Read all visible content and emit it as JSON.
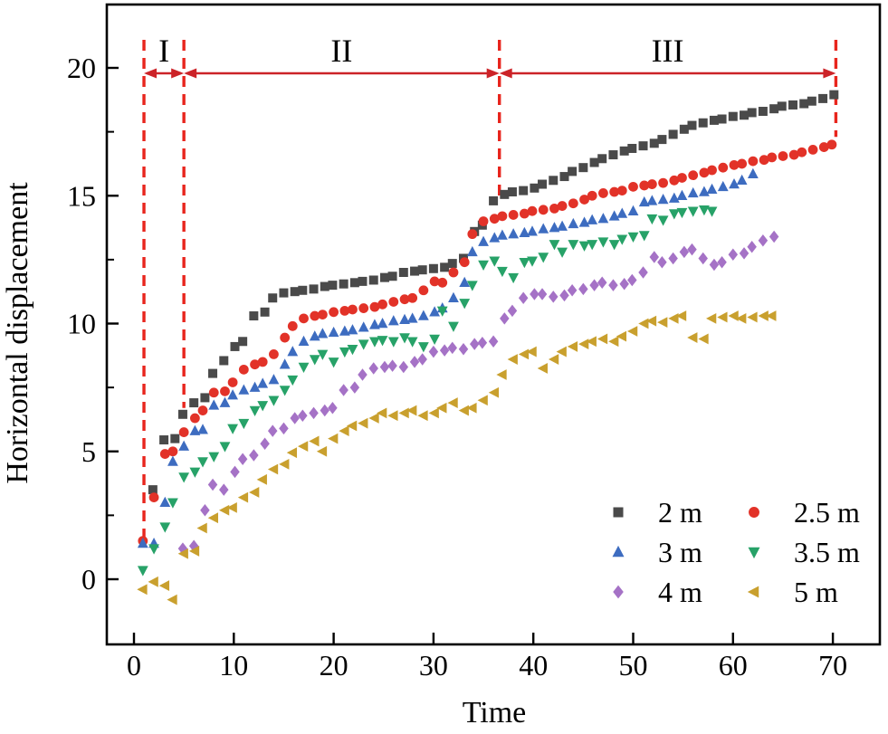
{
  "chart_data": {
    "type": "scatter",
    "title": "",
    "xlabel": "Time",
    "ylabel": "Horizontal displacement",
    "xlim": [
      -2.7,
      74.7
    ],
    "ylim": [
      -2.55,
      22.5
    ],
    "grid": false,
    "legend_position": "lower right",
    "x_ticks": [
      0,
      10,
      20,
      30,
      40,
      50,
      60,
      70
    ],
    "y_ticks": [
      0,
      5,
      10,
      15,
      20
    ],
    "y_minor_ticks": [
      2.5,
      7.5,
      12.5,
      17.5
    ],
    "accent_red": "#e8251d",
    "arrow_red": "#cc2328",
    "regions": [
      {
        "label": "I",
        "from": 1,
        "to": 5
      },
      {
        "label": "II",
        "from": 5,
        "to": 36.6
      },
      {
        "label": "III",
        "from": 36.6,
        "to": 70.3
      }
    ],
    "boundary_lines": [
      {
        "x": 1,
        "bottom": 1.4
      },
      {
        "x": 5,
        "bottom": 6.7
      },
      {
        "x": 36.6,
        "bottom": 15.0
      },
      {
        "x": 70.3,
        "bottom": 17.3
      }
    ],
    "series": [
      {
        "name": "2 m",
        "marker": "square",
        "color": "#4a4a4a",
        "t0": 2,
        "dt": 1,
        "values": [
          3.5,
          5.45,
          5.5,
          6.45,
          6.9,
          7.1,
          8.05,
          8.55,
          9.1,
          9.3,
          10.3,
          10.45,
          11.0,
          11.2,
          11.25,
          11.3,
          11.35,
          11.45,
          11.5,
          11.55,
          11.6,
          11.65,
          11.7,
          11.8,
          11.85,
          12.0,
          12.05,
          12.1,
          12.15,
          12.2,
          12.35,
          12.55,
          13.6,
          13.85,
          14.8,
          15.05,
          15.15,
          15.2,
          15.3,
          15.45,
          15.6,
          15.75,
          15.95,
          16.1,
          16.3,
          16.45,
          16.6,
          16.75,
          16.85,
          16.95,
          17.05,
          17.2,
          17.4,
          17.6,
          17.75,
          17.85,
          17.95,
          18.0,
          18.1,
          18.15,
          18.25,
          18.3,
          18.4,
          18.5,
          18.55,
          18.6,
          18.7,
          18.8,
          18.95
        ]
      },
      {
        "name": "2.5 m",
        "marker": "circle",
        "color": "#e23228",
        "t0": 1,
        "dt": 1,
        "values": [
          1.5,
          3.2,
          4.9,
          5.0,
          5.75,
          6.3,
          6.6,
          7.3,
          7.35,
          7.7,
          8.2,
          8.4,
          8.5,
          8.8,
          9.45,
          9.9,
          10.2,
          10.3,
          10.35,
          10.45,
          10.5,
          10.55,
          10.6,
          10.65,
          10.75,
          10.85,
          10.95,
          11.0,
          11.3,
          11.65,
          11.6,
          12.0,
          12.4,
          13.5,
          14.0,
          14.1,
          14.2,
          14.25,
          14.3,
          14.4,
          14.45,
          14.5,
          14.6,
          14.7,
          14.85,
          15.0,
          15.1,
          15.15,
          15.2,
          15.35,
          15.4,
          15.45,
          15.5,
          15.6,
          15.7,
          15.8,
          15.9,
          16.0,
          16.1,
          16.2,
          16.25,
          16.35,
          16.4,
          16.5,
          16.55,
          16.6,
          16.7,
          16.8,
          16.9,
          17.0
        ]
      },
      {
        "name": "3 m",
        "marker": "triangle-up",
        "color": "#3d6cc0",
        "t0": 1,
        "dt": 1,
        "values": [
          1.4,
          1.4,
          3.0,
          4.6,
          5.2,
          5.8,
          5.85,
          6.8,
          6.9,
          7.2,
          7.4,
          7.5,
          7.65,
          7.8,
          8.4,
          8.9,
          9.3,
          9.5,
          9.6,
          9.65,
          9.7,
          9.75,
          9.85,
          9.95,
          10.0,
          10.1,
          10.15,
          10.2,
          10.3,
          10.45,
          10.6,
          11.0,
          11.6,
          12.8,
          13.2,
          13.35,
          13.45,
          13.5,
          13.55,
          13.6,
          13.7,
          13.75,
          13.8,
          13.9,
          13.95,
          14.05,
          14.1,
          14.2,
          14.3,
          14.4,
          14.75,
          14.8,
          14.85,
          14.9,
          15.0,
          15.1,
          15.15,
          15.25,
          15.35,
          15.45,
          15.6,
          15.85
        ]
      },
      {
        "name": "3.5 m",
        "marker": "triangle-down",
        "color": "#27a268",
        "t0": 1,
        "dt": 1,
        "values": [
          0.35,
          1.2,
          2.05,
          3.0,
          4.0,
          4.2,
          4.6,
          4.8,
          5.2,
          5.9,
          6.1,
          6.6,
          6.8,
          7.0,
          7.4,
          7.8,
          8.3,
          8.6,
          8.8,
          8.5,
          8.9,
          9.0,
          9.2,
          9.3,
          9.35,
          9.3,
          9.45,
          9.3,
          9.1,
          9.4,
          10.5,
          9.9,
          10.8,
          11.5,
          12.3,
          12.45,
          12.05,
          11.8,
          12.4,
          12.45,
          12.6,
          13.1,
          12.8,
          13.1,
          13.05,
          13.1,
          13.2,
          13.1,
          13.3,
          13.4,
          13.45,
          14.1,
          14.05,
          14.3,
          14.35,
          14.4,
          14.45,
          14.4
        ]
      },
      {
        "name": "4 m",
        "marker": "diamond",
        "color": "#a572c6",
        "t0": 5,
        "dt": 1,
        "values": [
          1.2,
          1.3,
          2.7,
          3.7,
          3.5,
          4.2,
          4.7,
          4.85,
          5.3,
          5.8,
          5.9,
          6.3,
          6.4,
          6.5,
          6.6,
          6.7,
          7.4,
          7.5,
          8.0,
          8.25,
          8.3,
          8.35,
          8.3,
          8.5,
          8.6,
          8.9,
          8.95,
          9.05,
          9.0,
          9.2,
          9.25,
          9.3,
          10.2,
          10.5,
          11.0,
          11.15,
          11.15,
          11.05,
          11.1,
          11.3,
          11.35,
          11.5,
          11.6,
          11.5,
          11.55,
          11.7,
          12.0,
          12.6,
          12.4,
          12.55,
          12.8,
          12.9,
          12.55,
          12.3,
          12.4,
          12.7,
          12.75,
          13.0,
          13.25,
          13.4
        ]
      },
      {
        "name": "5 m",
        "marker": "triangle-left",
        "color": "#c9a02e",
        "t0": 1,
        "dt": 1,
        "values": [
          -0.4,
          -0.1,
          -0.25,
          -0.8,
          1.0,
          1.1,
          2.0,
          2.4,
          2.7,
          2.8,
          3.2,
          3.4,
          3.9,
          4.3,
          4.5,
          4.95,
          5.2,
          5.4,
          5.0,
          5.5,
          5.8,
          6.0,
          6.1,
          6.3,
          6.5,
          6.4,
          6.5,
          6.6,
          6.4,
          6.5,
          6.7,
          6.9,
          6.6,
          6.7,
          7.0,
          7.3,
          8.0,
          8.6,
          8.8,
          8.9,
          8.25,
          8.6,
          8.9,
          9.1,
          9.2,
          9.3,
          9.4,
          9.3,
          9.5,
          9.7,
          10.0,
          10.1,
          10.05,
          10.2,
          10.3,
          9.45,
          9.4,
          10.2,
          10.25,
          10.3,
          10.2,
          10.25,
          10.3,
          10.3
        ]
      }
    ]
  }
}
